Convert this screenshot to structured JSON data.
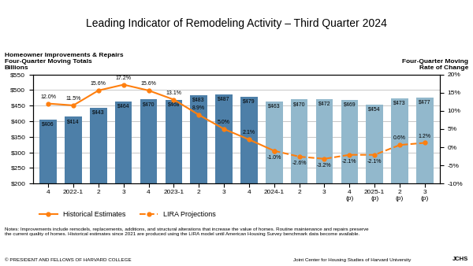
{
  "chart_data": {
    "type": "bar",
    "title": "Leading Indicator of Remodeling Activity – Third Quarter 2024",
    "y_label_lines": [
      "Homeowner Improvements & Repairs",
      "Four-Quarter Moving Totals",
      "Billions"
    ],
    "y2_label_lines": [
      "Four-Quarter Moving",
      "Rate of Change"
    ],
    "categories": [
      "4",
      "2022-1",
      "2",
      "3",
      "4",
      "2023-1",
      "2",
      "3",
      "4",
      "2024-1",
      "2",
      "3",
      "4\n(p)",
      "2025-1\n(p)",
      "2\n(p)",
      "3\n(p)"
    ],
    "series": [
      {
        "type": "bar",
        "colors": [
          "#4d7fa8",
          "#4d7fa8",
          "#4d7fa8",
          "#4d7fa8",
          "#4d7fa8",
          "#4d7fa8",
          "#4d7fa8",
          "#4d7fa8",
          "#4d7fa8",
          "#92b8cc",
          "#92b8cc",
          "#92b8cc",
          "#92b8cc",
          "#92b8cc",
          "#92b8cc",
          "#92b8cc"
        ],
        "values": [
          406,
          414,
          443,
          464,
          470,
          468,
          483,
          487,
          479,
          463,
          470,
          472,
          469,
          454,
          473,
          477
        ],
        "value_labels": [
          "$406",
          "$414",
          "$443",
          "$464",
          "$470",
          "$468",
          "$483",
          "$487",
          "$479",
          "$463",
          "$470",
          "$472",
          "$469",
          "$454",
          "$473",
          "$477"
        ],
        "data_labels": true
      },
      {
        "name": "Historical Estimates",
        "type": "line",
        "axis": "y2",
        "color": "#ff7f0e",
        "marker": "circle",
        "line_style": "solid",
        "values": [
          12.0,
          11.5,
          15.6,
          17.2,
          15.6,
          13.1,
          8.9,
          5.0,
          2.1,
          -1.0,
          null,
          null,
          null,
          null,
          null,
          null
        ],
        "value_labels": [
          "12.0%",
          "11.5%",
          "15.6%",
          "17.2%",
          "15.6%",
          "13.1%",
          "8.9%",
          "5.0%",
          "2.1%",
          "-1.0%",
          null,
          null,
          null,
          null,
          null,
          null
        ],
        "data_labels": true
      },
      {
        "name": "LIRA Projections",
        "type": "line",
        "axis": "y2",
        "color": "#ff7f0e",
        "marker": "circle",
        "line_style": "dashed",
        "values": [
          null,
          null,
          null,
          null,
          null,
          null,
          null,
          null,
          null,
          -1.0,
          -2.6,
          -3.2,
          -2.1,
          -2.1,
          0.6,
          1.2
        ],
        "value_labels": [
          null,
          null,
          null,
          null,
          null,
          null,
          null,
          null,
          null,
          null,
          "-2.6%",
          "-3.2%",
          "-2.1%",
          "-2.1%",
          "0.6%",
          "1.2%"
        ],
        "data_labels": true
      }
    ],
    "ylim": [
      200,
      550
    ],
    "yticks": [
      {
        "value": 200,
        "label": "$200"
      },
      {
        "value": 250,
        "label": "$250"
      },
      {
        "value": 300,
        "label": "$300"
      },
      {
        "value": 350,
        "label": "$350"
      },
      {
        "value": 400,
        "label": "$400"
      },
      {
        "value": 450,
        "label": "$450"
      },
      {
        "value": 500,
        "label": "$500"
      },
      {
        "value": 550,
        "label": "$550"
      }
    ],
    "y2lim": [
      -10,
      20
    ],
    "y2ticks": [
      {
        "value": -10,
        "label": "-10%"
      },
      {
        "value": -5,
        "label": "-5%"
      },
      {
        "value": 0,
        "label": "0%"
      },
      {
        "value": 5,
        "label": "5%"
      },
      {
        "value": 10,
        "label": "10%"
      },
      {
        "value": 15,
        "label": "15%"
      },
      {
        "value": 20,
        "label": "20%"
      }
    ],
    "grid": true,
    "legend": "lower left",
    "annotations": [
      "Notes: Improvements include remodels, replacements, additions, and structural alterations that increase the value of homes. Routine maintenance and repairs preserve\nthe current quality of homes. Historical estimates since 2021 are produced using the LIRA model until American Housing Survey benchmark data become available.",
      "© PRESIDENT AND FELLOWS OF HARVARD COLLEGE",
      "Joint Center for Housing Studies of Harvard University",
      "JCHS"
    ]
  }
}
